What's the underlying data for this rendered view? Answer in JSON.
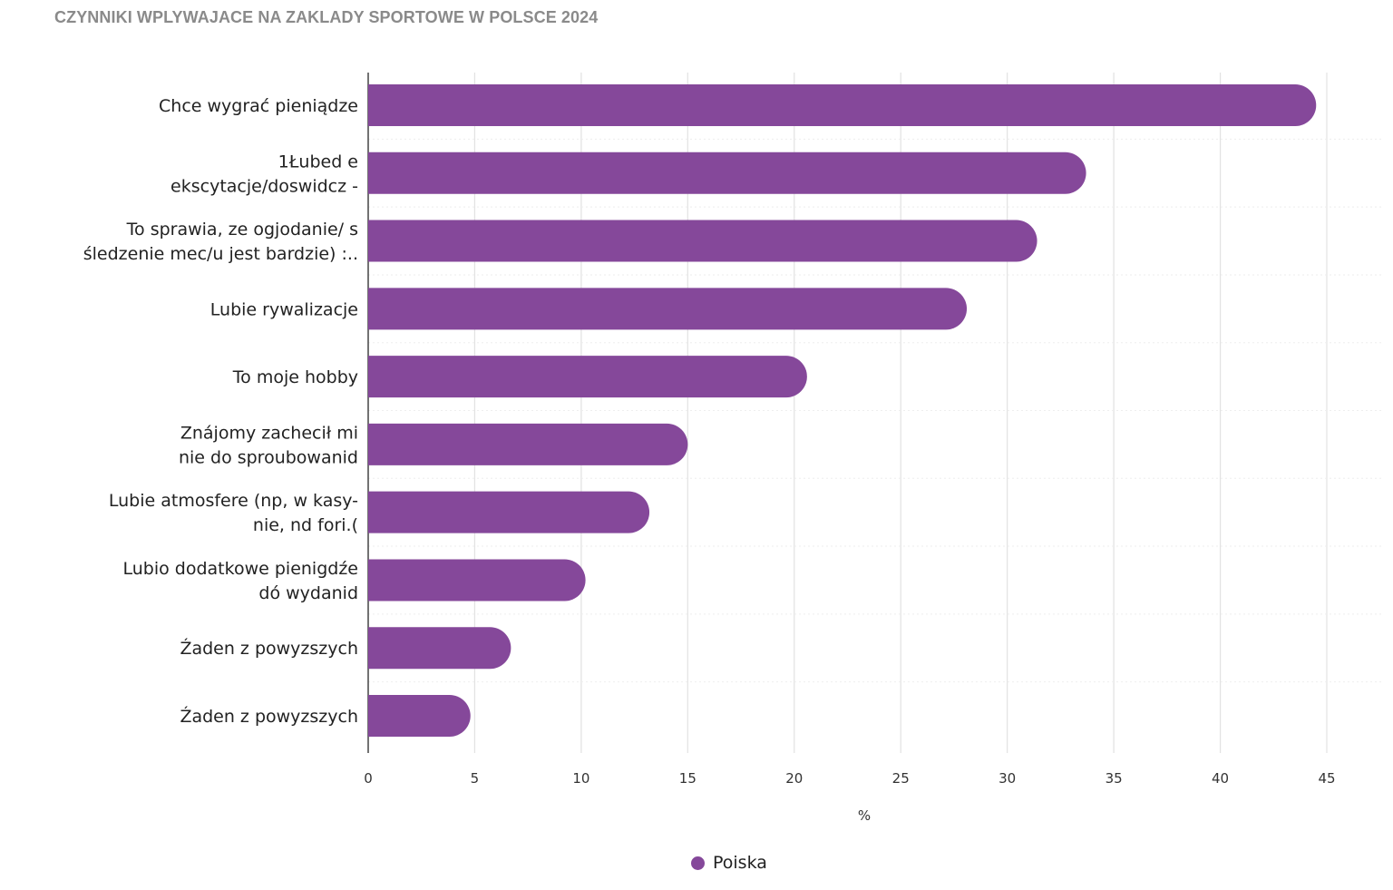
{
  "chart_data": {
    "type": "bar",
    "orientation": "horizontal",
    "title": "CZYNNIKI WPLYWAJACE NA ZAKLADY SPORTOWE W POLSCE 2024",
    "xlabel": "%",
    "ylabel": "",
    "xlim": [
      0,
      45
    ],
    "xticks": [
      0,
      5,
      10,
      15,
      20,
      25,
      30,
      35,
      40,
      45
    ],
    "grid": "vertical",
    "legend_position": "bottom",
    "bar_color": "#85489a",
    "categories": [
      "Chce wygrać pieniądze",
      "1Łubed e\nekscytacje/doswidcz -",
      "To sprawia, ze ogjodanie/ s\nśledzenie mec/u jest bardzie) :..",
      "Lubie rywalizacje",
      "To moje hobby",
      "Znájomy zachecił mi\nnie do sproubowanid",
      "Lubie atmosfere (np, w kasy-\nnie, nd fori.(",
      "Lubio dodatkowe pienigdźe\ndó wydanid",
      "Źaden z powyzszych",
      "Źaden z powyzszych"
    ],
    "series": [
      {
        "name": "Poiska",
        "values": [
          44.5,
          33.7,
          31.4,
          28.1,
          20.6,
          15.0,
          13.2,
          10.2,
          6.7,
          4.8
        ]
      }
    ]
  }
}
